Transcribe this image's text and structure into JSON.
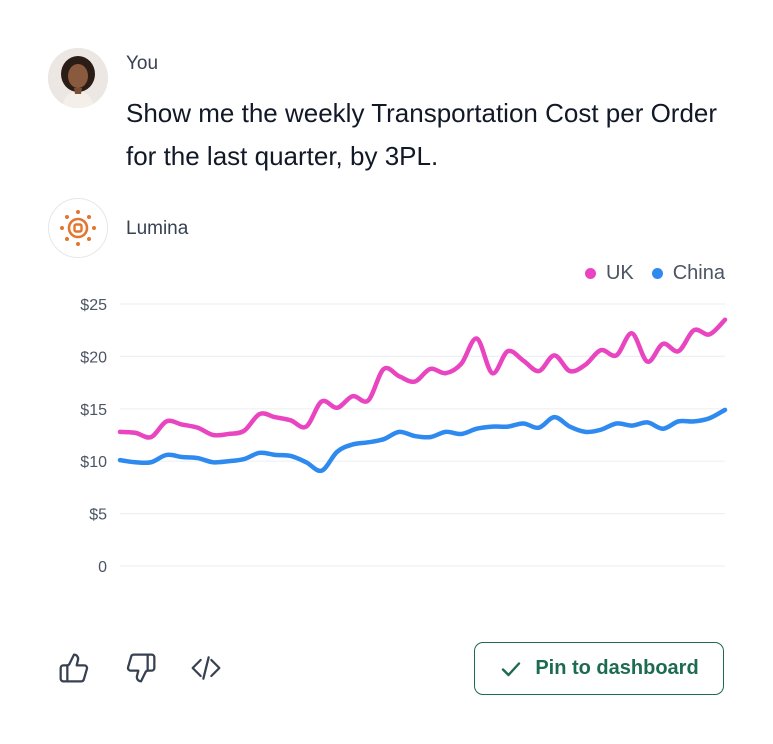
{
  "conversation": {
    "user": {
      "name": "You",
      "message": "Show me the weekly Transportation Cost per Order for the last quarter, by 3PL."
    },
    "assistant": {
      "name": "Lumina"
    }
  },
  "actions": {
    "pin_label": "Pin to dashboard",
    "icons": [
      "thumbs-up-icon",
      "thumbs-down-icon",
      "code-icon",
      "check-icon"
    ]
  },
  "colors": {
    "uk": "#e945c1",
    "china": "#2f8af0",
    "pin": "#1d6b50",
    "lumina": "#e4752e"
  },
  "chart_data": {
    "type": "line",
    "title": "",
    "xlabel": "",
    "ylabel": "",
    "ylim": [
      0,
      25
    ],
    "yticks": [
      "0",
      "$5",
      "$10",
      "$15",
      "$20",
      "$25"
    ],
    "yticks_values": [
      0,
      5,
      10,
      15,
      20,
      25
    ],
    "legend_position": "top-right",
    "grid": true,
    "series": [
      {
        "name": "UK",
        "color": "#e945c1",
        "values": [
          12.8,
          12.7,
          12.3,
          13.8,
          13.5,
          13.2,
          12.5,
          12.6,
          12.9,
          14.5,
          14.2,
          13.9,
          13.3,
          15.7,
          15.1,
          16.2,
          15.8,
          18.8,
          18.1,
          17.6,
          18.8,
          18.4,
          19.3,
          21.7,
          18.4,
          20.5,
          19.6,
          18.6,
          20.1,
          18.6,
          19.2,
          20.6,
          20.1,
          22.2,
          19.5,
          21.2,
          20.5,
          22.5,
          22.1,
          23.5
        ]
      },
      {
        "name": "China",
        "color": "#2f8af0",
        "values": [
          10.1,
          9.9,
          9.9,
          10.6,
          10.4,
          10.3,
          9.9,
          10.0,
          10.2,
          10.8,
          10.6,
          10.5,
          9.9,
          9.1,
          10.9,
          11.6,
          11.8,
          12.1,
          12.8,
          12.4,
          12.3,
          12.8,
          12.6,
          13.1,
          13.3,
          13.3,
          13.6,
          13.2,
          14.2,
          13.3,
          12.8,
          13.0,
          13.6,
          13.4,
          13.7,
          13.1,
          13.8,
          13.8,
          14.1,
          14.9
        ]
      }
    ]
  }
}
